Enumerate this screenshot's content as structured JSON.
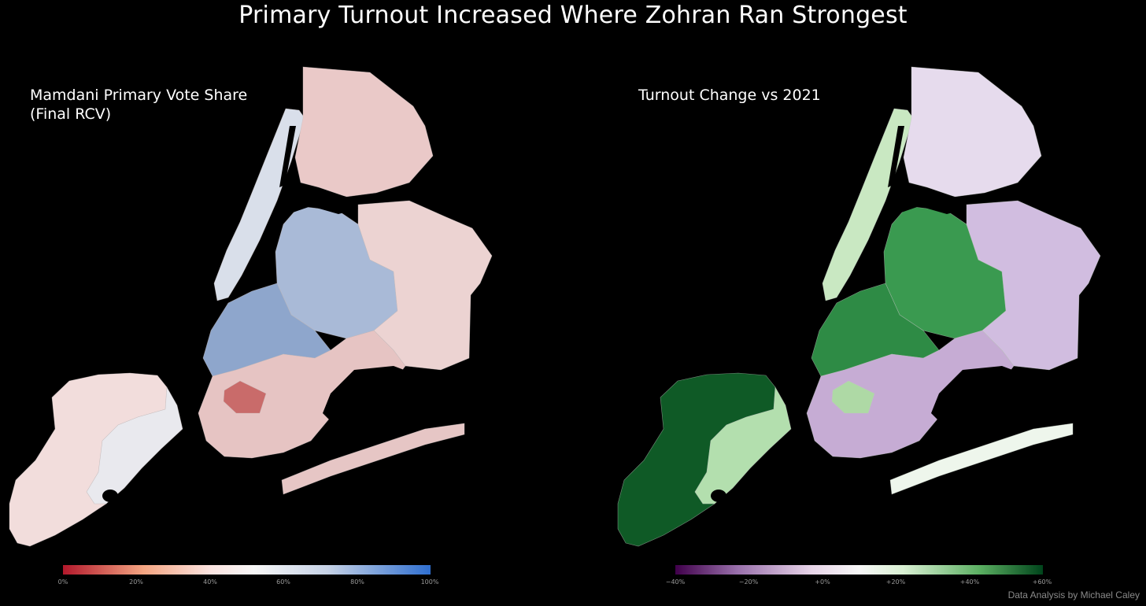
{
  "title": "Primary Turnout Increased Where Zohran Ran Strongest",
  "left_panel": {
    "title_lines": [
      "Mamdani Primary Vote Share",
      "(Final RCV)"
    ],
    "colorbar": {
      "ticks": [
        "0%",
        "20%",
        "40%",
        "60%",
        "80%",
        "100%"
      ],
      "min_color": "#b2182b",
      "mid_color": "#f7f7f7",
      "max_color": "#2f6fd0"
    },
    "region_colors": {
      "staten_island_sw": "#f2dddc",
      "staten_island_ne": "#e9e9ee",
      "manhattan": "#d9dfea",
      "bronx": "#eac9c8",
      "brooklyn_north": "#8ea6cc",
      "brooklyn_south": "#e6c4c3",
      "brooklyn_hot": "#c96b6a",
      "queens_west": "#a9bad7",
      "queens_east": "#ecd3d2",
      "rockaway": "#e6c6c5"
    }
  },
  "right_panel": {
    "title_lines": [
      "Turnout Change vs 2021"
    ],
    "colorbar": {
      "ticks": [
        "−40%",
        "−20%",
        "+0%",
        "+20%",
        "+40%",
        "+60%"
      ],
      "min_color": "#40004b",
      "mid_color": "#f7f7f7",
      "max_color": "#00441b"
    },
    "region_colors": {
      "staten_island_sw": "#0f5a26",
      "staten_island_ne": "#b3dfae",
      "manhattan": "#c9e8c2",
      "bronx": "#e6dbed",
      "brooklyn_north": "#2e8b45",
      "brooklyn_south": "#c6acd4",
      "brooklyn_hot": "#aed9a5",
      "queens_west": "#3a9a50",
      "queens_east": "#d1bde0",
      "rockaway": "#eef6ec"
    }
  },
  "credit": "Data Analysis by Michael Caley"
}
